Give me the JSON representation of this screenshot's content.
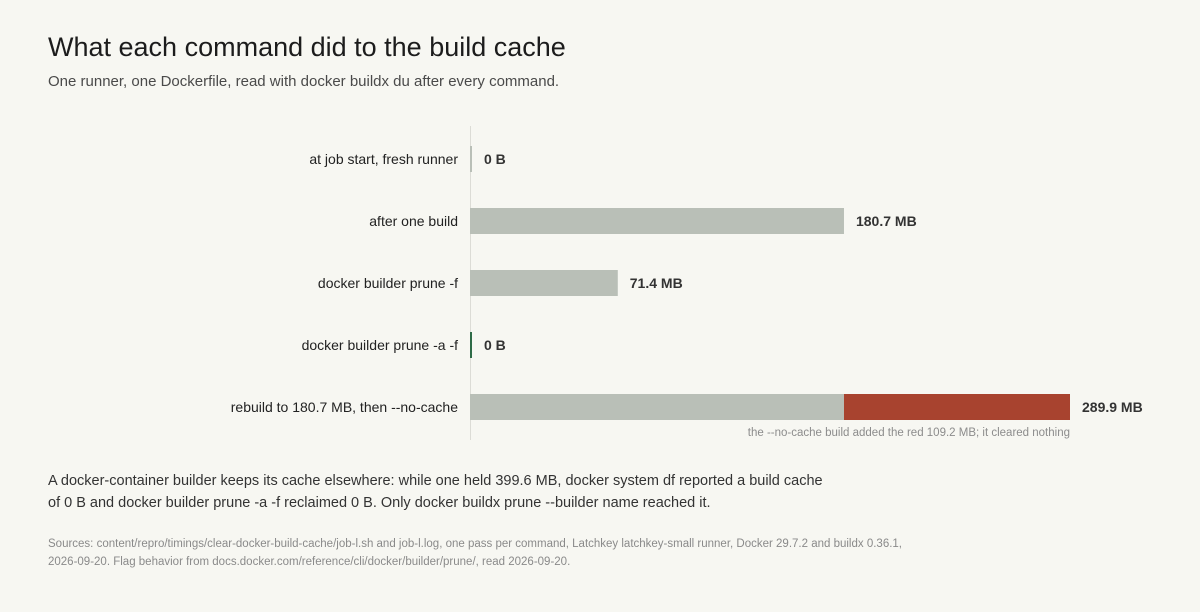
{
  "title": "What each command did to the build cache",
  "subtitle": "One runner, one Dockerfile, read with docker buildx du after every command.",
  "chart_data": {
    "type": "bar",
    "orientation": "horizontal",
    "stacked": true,
    "unit": "MB",
    "xlim": [
      0,
      289.9
    ],
    "grid": false,
    "legend": "none",
    "categories": [
      "at job start, fresh runner",
      "after one build",
      "docker builder prune -f",
      "docker builder prune -a -f",
      "rebuild to 180.7 MB, then --no-cache"
    ],
    "series": [
      {
        "values": [
          0,
          180.7,
          71.4,
          0,
          180.7
        ],
        "color": "#b9bfb7"
      },
      {
        "values": [
          0,
          0,
          0,
          0,
          109.2
        ],
        "color": "#a8432f"
      }
    ],
    "value_labels": [
      "0 B",
      "180.7 MB",
      "71.4 MB",
      "0 B",
      "289.9 MB"
    ],
    "zero_marker_colors": [
      "#b9bfb7",
      null,
      null,
      "#2e6b47",
      null
    ],
    "annotation": "the --no-cache build added the red 109.2 MB; it cleared nothing"
  },
  "note": "A docker-container builder keeps its cache elsewhere: while one held 399.6 MB, docker system df reported a build cache of 0 B and docker builder prune -a -f reclaimed 0 B. Only docker buildx prune --builder name reached it.",
  "sources": "Sources: content/repro/timings/clear-docker-build-cache/job-l.sh and job-l.log, one pass per command, Latchkey latchkey-small runner, Docker 29.7.2 and buildx 0.36.1, 2026-09-20. Flag behavior from docs.docker.com/reference/cli/docker/builder/prune/, read 2026-09-20."
}
